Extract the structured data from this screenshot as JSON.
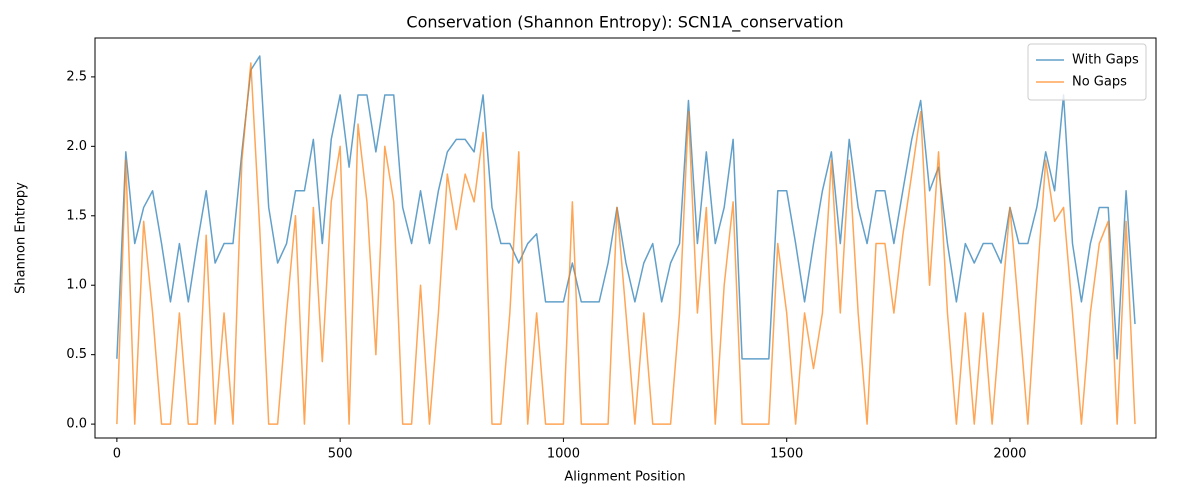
{
  "chart_data": {
    "type": "line",
    "title": "Conservation (Shannon Entropy): SCN1A_conservation",
    "x_label": "Alignment Position",
    "y_label": "Shannon Entropy",
    "x": [
      0,
      20,
      40,
      60,
      80,
      100,
      120,
      140,
      160,
      180,
      200,
      220,
      240,
      260,
      280,
      300,
      320,
      340,
      360,
      380,
      400,
      420,
      440,
      460,
      480,
      500,
      520,
      540,
      560,
      580,
      600,
      620,
      640,
      660,
      680,
      700,
      720,
      740,
      760,
      780,
      800,
      820,
      840,
      860,
      880,
      900,
      920,
      940,
      960,
      980,
      1000,
      1020,
      1040,
      1060,
      1080,
      1100,
      1120,
      1140,
      1160,
      1180,
      1200,
      1220,
      1240,
      1260,
      1280,
      1300,
      1320,
      1340,
      1360,
      1380,
      1400,
      1420,
      1440,
      1460,
      1480,
      1500,
      1520,
      1540,
      1560,
      1580,
      1600,
      1620,
      1640,
      1660,
      1680,
      1700,
      1720,
      1740,
      1760,
      1780,
      1800,
      1820,
      1840,
      1860,
      1880,
      1900,
      1920,
      1940,
      1960,
      1980,
      2000,
      2020,
      2040,
      2060,
      2080,
      2100,
      2120,
      2140,
      2160,
      2180,
      2200,
      2220,
      2240,
      2260,
      2280
    ],
    "series": [
      {
        "name": "With Gaps",
        "color": "#1f77b4",
        "values": [
          0.47,
          1.96,
          1.3,
          1.56,
          1.68,
          1.3,
          0.88,
          1.3,
          0.88,
          1.3,
          1.68,
          1.16,
          1.3,
          1.3,
          1.96,
          2.55,
          2.65,
          1.56,
          1.16,
          1.3,
          1.68,
          1.68,
          2.05,
          1.3,
          2.05,
          2.37,
          1.85,
          2.37,
          2.37,
          1.96,
          2.37,
          2.37,
          1.56,
          1.3,
          1.68,
          1.3,
          1.68,
          1.96,
          2.05,
          2.05,
          1.96,
          2.37,
          1.56,
          1.3,
          1.3,
          1.16,
          1.3,
          1.37,
          0.88,
          0.88,
          0.88,
          1.16,
          0.88,
          0.88,
          0.88,
          1.16,
          1.56,
          1.16,
          0.88,
          1.16,
          1.3,
          0.88,
          1.16,
          1.3,
          2.33,
          1.3,
          1.96,
          1.3,
          1.56,
          2.05,
          0.47,
          0.47,
          0.47,
          0.47,
          1.68,
          1.68,
          1.3,
          0.88,
          1.3,
          1.68,
          1.96,
          1.3,
          2.05,
          1.56,
          1.3,
          1.68,
          1.68,
          1.3,
          1.68,
          2.05,
          2.33,
          1.68,
          1.85,
          1.3,
          0.88,
          1.3,
          1.16,
          1.3,
          1.3,
          1.16,
          1.56,
          1.3,
          1.3,
          1.56,
          1.96,
          1.68,
          2.37,
          1.3,
          0.88,
          1.3,
          1.56,
          1.56,
          0.47,
          1.68,
          0.72
        ]
      },
      {
        "name": "No Gaps",
        "color": "#ff7f0e",
        "values": [
          0,
          1.9,
          0,
          1.46,
          0.8,
          0,
          0,
          0.8,
          0,
          0,
          1.36,
          0,
          0.8,
          0,
          1.9,
          2.6,
          1.4,
          0,
          0,
          0.8,
          1.5,
          0,
          1.56,
          0.45,
          1.6,
          2.0,
          0,
          2.16,
          1.6,
          0.5,
          2.0,
          1.6,
          0,
          0,
          1.0,
          0,
          0.8,
          1.8,
          1.4,
          1.8,
          1.6,
          2.1,
          0,
          0,
          0.8,
          1.96,
          0,
          0.8,
          0,
          0,
          0,
          1.6,
          0,
          0,
          0,
          0,
          1.56,
          0.8,
          0,
          0.8,
          0,
          0,
          0,
          0.8,
          2.25,
          0.8,
          1.56,
          0,
          1.0,
          1.6,
          0,
          0,
          0,
          0,
          1.3,
          0.8,
          0,
          0.8,
          0.4,
          0.8,
          1.9,
          0.8,
          1.9,
          0.8,
          0,
          1.3,
          1.3,
          0.8,
          1.36,
          1.8,
          2.25,
          1.0,
          1.96,
          0.8,
          0,
          0.8,
          0,
          0.8,
          0,
          0.8,
          1.56,
          0.8,
          0,
          1.0,
          1.9,
          1.46,
          1.56,
          0.8,
          0,
          0.8,
          1.3,
          1.46,
          0,
          1.46,
          0
        ]
      }
    ],
    "xlim": [
      -49,
      2327
    ],
    "ylim": [
      -0.1,
      2.78
    ],
    "xticks": [
      0,
      500,
      1000,
      1500,
      2000
    ],
    "yticks": [
      {
        "value": 0,
        "label": "0.0"
      },
      0.5,
      {
        "value": 1,
        "label": "1.0"
      },
      1.5,
      {
        "value": 2,
        "label": "2.0"
      },
      2.5
    ],
    "grid": false,
    "legend": "upper right"
  }
}
